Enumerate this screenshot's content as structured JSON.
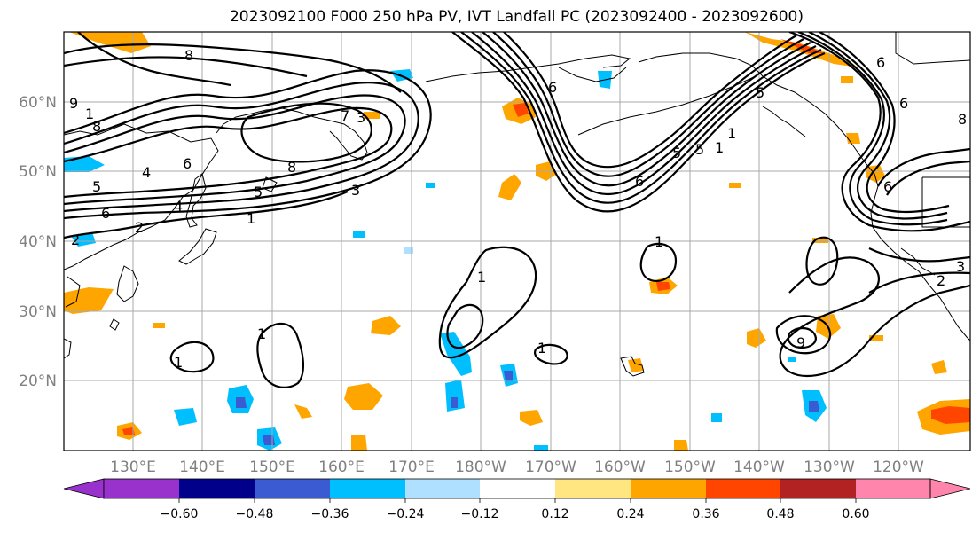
{
  "title": "2023092100 F000 250 hPa PV, IVT Landfall PC (2023092400 - 2023092600)",
  "lat_labels": [
    "60°N",
    "50°N",
    "40°N",
    "30°N",
    "20°N"
  ],
  "lon_labels": [
    "130°E",
    "140°E",
    "150°E",
    "160°E",
    "170°E",
    "180°W",
    "170°W",
    "160°W",
    "150°W",
    "140°W",
    "130°W",
    "120°W"
  ],
  "colorbar": {
    "ticks": [
      "−0.60",
      "−0.48",
      "−0.36",
      "−0.24",
      "−0.12",
      "0.12",
      "0.24",
      "0.36",
      "0.48",
      "0.60"
    ],
    "colors": [
      "#9932cc",
      "#00008b",
      "#3a5bd1",
      "#00bfff",
      "#b0e0ff",
      "#ffffff",
      "#ffe680",
      "#ffa500",
      "#ff4500",
      "#b22222",
      "#ff85ad"
    ]
  },
  "contour_labels": [
    "9",
    "1",
    "8",
    "8",
    "7",
    "3",
    "6",
    "8",
    "5",
    "4",
    "5",
    "3",
    "6",
    "4",
    "1",
    "2",
    "2",
    "6",
    "6",
    "5",
    "5",
    "1",
    "1",
    "1",
    "1",
    "1",
    "1",
    "1",
    "2",
    "3",
    "5",
    "6",
    "9",
    "6",
    "8",
    "6"
  ]
}
